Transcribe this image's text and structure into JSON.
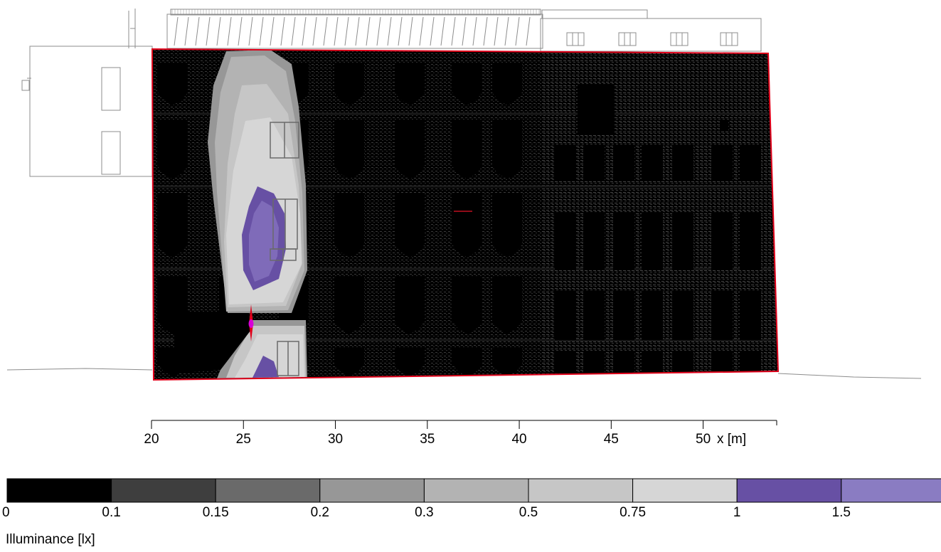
{
  "figure": {
    "x_axis": {
      "label": "x [m]",
      "ticks": [
        {
          "value": 20,
          "label": "20"
        },
        {
          "value": 25,
          "label": "25"
        },
        {
          "value": 30,
          "label": "30"
        },
        {
          "value": 35,
          "label": "35"
        },
        {
          "value": 40,
          "label": "40"
        },
        {
          "value": 45,
          "label": "45"
        },
        {
          "value": 50,
          "label": "50"
        }
      ],
      "range": [
        20,
        54
      ]
    },
    "legend": {
      "title": "Illuminance [lx]",
      "bins": [
        {
          "label": "0",
          "color": "#000000"
        },
        {
          "label": "0.1",
          "color": "#3e3e3e"
        },
        {
          "label": "0.15",
          "color": "#6a6a6a"
        },
        {
          "label": "0.2",
          "color": "#979797"
        },
        {
          "label": "0.3",
          "color": "#b3b3b3"
        },
        {
          "label": "0.5",
          "color": "#c6c6c6"
        },
        {
          "label": "0.75",
          "color": "#d6d6d6"
        },
        {
          "label": "1",
          "color": "#6750a4"
        },
        {
          "label": "1.5",
          "color": "#8a7cc2"
        }
      ]
    },
    "colors": {
      "boundary": "#e0001a",
      "drawing_lines": "#8c8c8c",
      "facade_texture": "#3a3a3a",
      "luminaire_marker": "#d800d8"
    }
  }
}
